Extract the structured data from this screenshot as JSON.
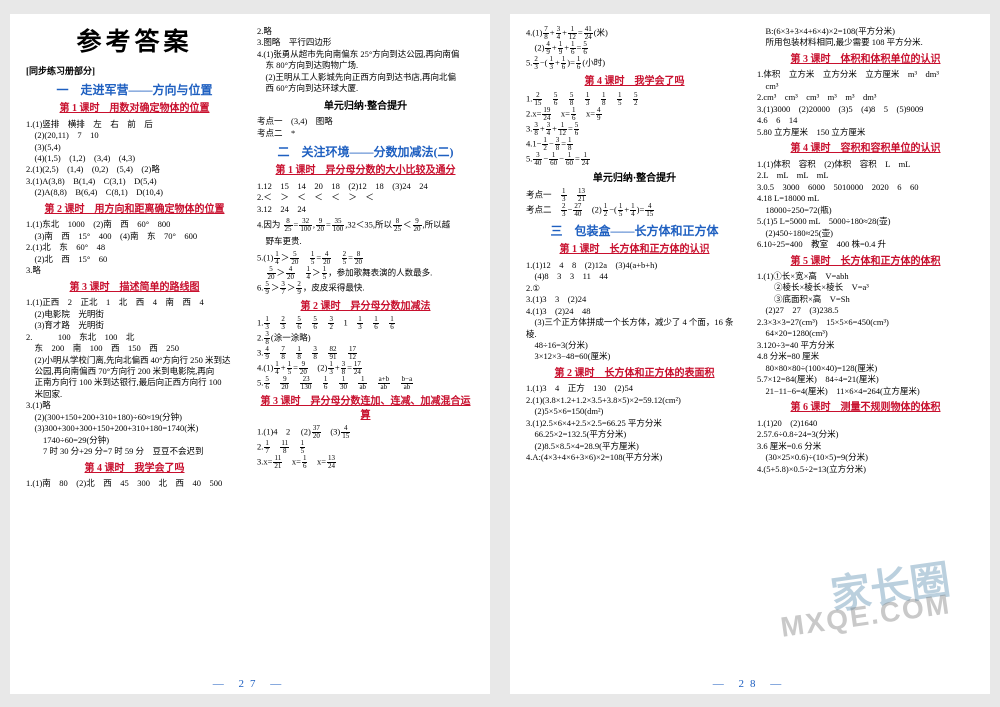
{
  "colors": {
    "blue": "#1e5fc0",
    "red": "#c8102e",
    "bg": "#e8e8e8",
    "paper": "#ffffff"
  },
  "watermarks": {
    "wm1": "家长圈",
    "wm2": "MXQE.COM"
  },
  "page_left": {
    "num": "— 27 —"
  },
  "page_right": {
    "num": "— 28 —"
  },
  "L1": {
    "big": "参考答案",
    "sub": "[同步练习册部分]",
    "sect1": "一　走进军营——方向与位置",
    "les1": "第 1 课时　用数对确定物体的位置",
    "a": [
      "1.(1)竖排　横排　左　右　前　后",
      "　(2)(20,11)　7　10",
      "　(3)(5,4)",
      "　(4)(1,5)　(1,2)　(3,4)　(4,3)",
      "2.(1)(2,5)　(1,4)　(0,2)　(5,4)　(2)略",
      "3.(1)A(3,8)　B(1,4)　C(3,1)　D(5,4)",
      "　(2)A(8,8)　B(6,4)　C(8,1)　D(10,4)"
    ],
    "les2": "第 2 课时　用方向和距离确定物体的位置",
    "b": [
      "1.(1)东北　1000　(2)南　西　60°　800",
      "　(3)南　西　15°　400　(4)南　东　70°　600",
      "2.(1)北　东　60°　48",
      "　(2)北　西　15°　60",
      "3.略"
    ],
    "les3": "第 3 课时　描述简单的路线图",
    "c": [
      "1.(1)正西　2　正北　1　北　西　4　南　西　4",
      "　(2)电影院　光明街",
      "　(3)育才路　光明街",
      "2.　　　100　东北　100　北",
      "　东　200　南　100　西　150　西　250",
      "　(2)小明从学校门离,先向北偏西 40°方向行 250 米到达",
      "　公园,再向南偏西 70°方向行 200 米到电影院,再向",
      "　正南方向行 100 米到达银行,最后向正西方向行 100",
      "　米回家.",
      "3.(1)略",
      "　(2)(300+150+200+310+180)÷60≈19(分钟)",
      "　(3)300+300+300+150+200+310+180=1740(米)",
      "　　1740÷60=29(分钟)",
      "　　7 时 30 分+29 分=7 时 59 分　豆豆不会迟到"
    ],
    "les4": "第 4 课时　我学会了吗",
    "d": [
      "1.(1)南　80　(2)北　西　45　300　北　西　40　500"
    ]
  },
  "L2": {
    "a": [
      "2.略",
      "3.图略　平行四边形",
      "4.(1)张勇从超市先向南偏东 25°方向到达公园,再向南偏",
      "　东 80°方向到达购物广场.",
      "　(2)王明从工人影城先向正西方向到达书店,再向北偏",
      "　西 60°方向到达环球大厦."
    ],
    "unit1": "单元归纳·整合提升",
    "b": [
      "考点一　(3,4)　图略",
      "考点二　*"
    ],
    "sect2": "二　关注环境——分数加减法(二)",
    "les1": "第 1 课时　异分母分数的大小比较及通分",
    "c": [
      "1.12　15　14　20　18　(2)12　18　(3)24　24",
      "2.＜　＞　＜　＜　＜　＞　＜",
      "3.12　24　24"
    ],
    "d_pre": "4.因为",
    "d_fracs": [
      "8/25",
      "=",
      "32/100",
      ",",
      "9/20",
      "=",
      "35/100",
      ",32＜35,所以",
      "8/25",
      "＜",
      "9/20",
      ",所以越"
    ],
    "d_post": [
      "　野车更贵."
    ],
    "e": [
      [
        "5.",
        "(1)",
        "1/4",
        "＞",
        "5/20",
        "　",
        "1/5",
        "=",
        "4/20",
        "　",
        "2/5",
        "=",
        "8/20"
      ],
      [
        "　",
        "5/20",
        "＞",
        "4/20",
        "　",
        "1/4",
        "＞",
        "1/5",
        "，参加歌舞表演的人数最多."
      ],
      [
        "6.",
        "5/9",
        "＞",
        "3/7",
        "＞",
        "2/9",
        "，皮皮采得最快."
      ]
    ],
    "les2": "第 2 课时　异分母分数加减法",
    "f": [
      [
        "1.",
        "1/3",
        "　",
        "2/3",
        "　",
        "5/6",
        "　",
        "5/6",
        "　",
        "3/2",
        "　",
        "1",
        "　",
        "1/3",
        "　",
        "1/6",
        "　",
        "1/6"
      ],
      [
        "2.",
        "3/8",
        "(涂一涂略)"
      ],
      [
        "3.",
        "4/9",
        "　",
        "7/8",
        "　",
        "1/8",
        "　",
        "3/8",
        "　",
        "82/91",
        "　",
        "17/12"
      ],
      [
        "4.(1)",
        "1/4",
        "+",
        "1/5",
        "=",
        "9/20",
        "　(2)",
        "1/3",
        "+",
        "3/8",
        "=",
        "17/24"
      ],
      [
        "5.",
        "5/6",
        "　",
        "9/20",
        "　",
        "23/130",
        "　",
        "1/6",
        "　",
        "1/30",
        "　",
        "1/ab",
        "　",
        "a+b/ab",
        "　",
        "b−a/ab"
      ]
    ],
    "les3": "第 3 课时　异分母分数连加、连减、加减混合运算",
    "g": [
      [
        "1.(1)4　2　 (2)",
        "37/20",
        "　(3)",
        "4/15"
      ],
      [
        "2.",
        "1/7",
        "　",
        "11/8",
        "　",
        "1/5"
      ],
      [
        "3.x=",
        "11/21",
        "　x=",
        "1/6",
        "　x=",
        "13/24"
      ]
    ]
  },
  "R1": {
    "a": [
      [
        "4.(1)",
        "7/8",
        "+",
        "3/4",
        "+",
        "1/12",
        "=",
        "41/24",
        "(米)"
      ],
      [
        "　(2)",
        "4/9",
        "+",
        "1/9",
        "+",
        "1/6",
        "=",
        "5/6"
      ],
      [
        "5.",
        "2/3",
        "−(",
        "1/3",
        "+",
        "1/6",
        ")=",
        "1/6",
        "(小时)"
      ]
    ],
    "les4": "第 4 课时　我学会了吗",
    "b": [
      [
        "1.",
        "2/15",
        "　",
        "5/6",
        "　",
        "5/8",
        "　",
        "1/3",
        "　",
        "1/8",
        "　",
        "1/5",
        "　",
        "5/2"
      ],
      [
        "2.x=",
        "19/24",
        "　x=",
        "1/6",
        "　x=",
        "4/9"
      ],
      [
        "3.",
        "3/8",
        "+",
        "3/4",
        "+",
        "1/12",
        "=",
        "5/6"
      ],
      [
        "4.1−",
        "1/2",
        "−",
        "3/8",
        "=",
        "1/8"
      ],
      [
        "5.",
        "3/40",
        "−",
        "1/60",
        "−",
        "1/60",
        "=",
        "1/24"
      ]
    ],
    "unit": "单元归纳·整合提升",
    "c": [
      [
        "考点一　",
        "1/3",
        "　",
        "13/21"
      ],
      [
        "考点二　",
        "2/3",
        "−",
        "27/40",
        "　(2)",
        "1/2",
        "−(",
        "1/5",
        "+",
        "1/4",
        ")=",
        "4/15"
      ]
    ],
    "sect3": "三　包装盒——长方体和正方体",
    "les1": "第 1 课时　长方体和正方体的认识",
    "d": [
      "1.(1)12　4　8　(2)12a　(3)4(a+b+h)",
      "　(4)8　3　3　11　44",
      "2.①",
      "3.(1)3　3　(2)24",
      "4.(1)3　(2)24　48",
      "　(3)三个正方体拼成一个长方体，减少了 4 个面，16 条棱.",
      "　48÷16=3(分米)",
      "　3×12×3−48=60(厘米)"
    ],
    "les2": "第 2 课时　长方体和正方体的表面积",
    "e": [
      "1.(1)3　4　正方　130　(2)54",
      "2.(1)(3.8×1.2+1.2×3.5+3.8×5)×2=59.12(cm²)",
      "　(2)5×5×6=150(dm²)",
      "3.(1)2.5×6×4+2.5×2.5=66.25 平方分米",
      "　66.25×2=132.5(平方分米)",
      "　(2)8.5×8.5×4=28.9(平方厘米)",
      "4.A:(4×3+4×6+3×6)×2=108(平方分米)"
    ]
  },
  "R2": {
    "a": [
      "　B:(6×3+3×4+6×4)×2=108(平方分米)",
      "　所用包装材料相同,最少需要 108 平方分米."
    ],
    "les3": "第 3 课时　体积和体积单位的认识",
    "b": [
      "1.体积　立方米　立方分米　立方厘米　m³　dm³",
      "　cm³",
      "2.cm³　cm³　cm³　m³　m³　dm³",
      "3.(1)3000　(2)20000　(3)5　(4)8　5　(5)9009",
      "4.6　6　14",
      "5.80 立方厘米　150 立方厘米"
    ],
    "les4": "第 4 课时　容积和容积单位的认识",
    "c": [
      "1.(1)体积　容积　(2)体积　容积　L　mL",
      "2.L　mL　mL　mL",
      "3.0.5　3000　6000　5010000　2020　6　60",
      "4.18 L=18000 mL",
      "　18000÷250=72(瓶)",
      "5.(1)5 L=5000 mL　5000÷180≈28(壶)",
      "　(2)450÷180≈25(壶)",
      "6.10÷25=400　教室　400 株=0.4 升"
    ],
    "les5": "第 5 课时　长方体和正方体的体积",
    "d": [
      "1.(1)①长×宽×高　V=abh",
      "　　②棱长×棱长×棱长　V=a³",
      "　　③底面积×高　V=Sh",
      "　(2)27　27　(3)238.5",
      "2.3×3×3=27(cm³)　15×5×6=450(cm³)",
      "　64×20=1280(cm³)",
      "3.120÷3=40 平方分米",
      "4.8 分米=80 厘米",
      "　80×80×80÷(100×40)=128(厘米)",
      "5.7×12=84(厘米)　84÷4=21(厘米)",
      "　21−11−6=4(厘米)　11×6×4=264(立方厘米)"
    ],
    "les6": "第 6 课时　测量不规则物体的体积",
    "e": [
      "1.(1)20　(2)1640",
      "2.57.6÷0.8÷24=3(分米)",
      "3.6 厘米=0.6 分米",
      "　(30×25×0.6)÷(10×5)=9(分米)",
      "4.(5+5.8)×0.5÷2=13(立方分米)"
    ]
  }
}
